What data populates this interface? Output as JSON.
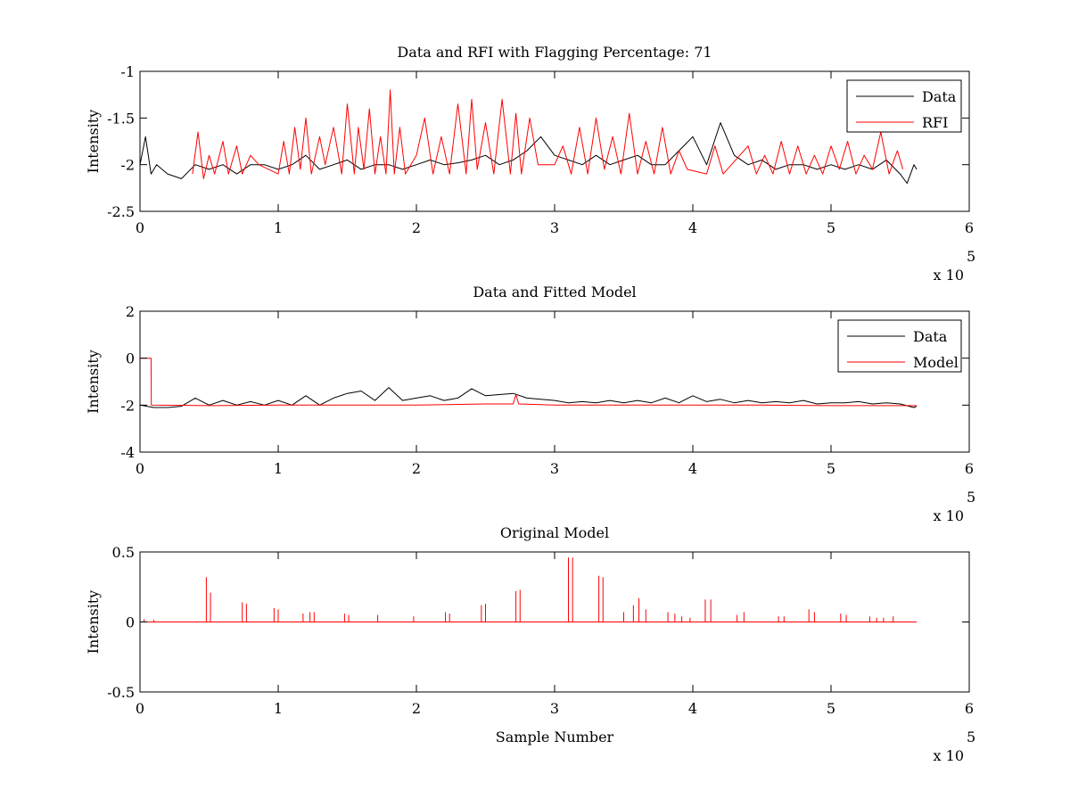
{
  "chart_data": [
    {
      "type": "line",
      "title": "Data and RFI with Flagging Percentage: 71",
      "xlabel": "",
      "ylabel": "Intensity",
      "xlim": [
        0,
        600000
      ],
      "ylim": [
        -2.5,
        -1
      ],
      "xticks": [
        0,
        1,
        2,
        3,
        4,
        5,
        6
      ],
      "yticks": [
        -2.5,
        -2,
        -1.5,
        -1
      ],
      "xtick_labels": [
        "0",
        "1",
        "2",
        "3",
        "4",
        "5",
        "6"
      ],
      "ytick_labels": [
        "-2.5",
        "-2",
        "-1.5",
        "-1"
      ],
      "x_multiplier": "x 10",
      "x_multiplier_exp": "5",
      "grid": false,
      "legend": "top-right",
      "series": [
        {
          "name": "Data",
          "color": "#000000",
          "x": [
            0,
            4000,
            8000,
            12000,
            20000,
            30000,
            40000,
            50000,
            60000,
            70000,
            80000,
            90000,
            100000,
            110000,
            120000,
            130000,
            140000,
            150000,
            160000,
            170000,
            180000,
            190000,
            200000,
            210000,
            220000,
            230000,
            240000,
            250000,
            260000,
            270000,
            280000,
            290000,
            300000,
            310000,
            320000,
            330000,
            340000,
            350000,
            360000,
            370000,
            380000,
            390000,
            400000,
            410000,
            420000,
            430000,
            440000,
            450000,
            460000,
            470000,
            480000,
            490000,
            500000,
            510000,
            520000,
            530000,
            540000,
            550000,
            555000,
            560000,
            562000
          ],
          "y": [
            -2.0,
            -1.7,
            -2.1,
            -2.0,
            -2.1,
            -2.15,
            -2.0,
            -2.05,
            -2.0,
            -2.1,
            -2.0,
            -2.0,
            -2.05,
            -2.0,
            -1.9,
            -2.05,
            -2.0,
            -1.95,
            -2.05,
            -2.0,
            -2.0,
            -2.05,
            -2.0,
            -1.95,
            -2.0,
            -1.98,
            -1.95,
            -1.9,
            -2.0,
            -1.95,
            -1.85,
            -1.7,
            -1.9,
            -1.95,
            -2.0,
            -1.9,
            -2.0,
            -1.95,
            -1.9,
            -2.0,
            -2.0,
            -1.85,
            -1.7,
            -2.0,
            -1.55,
            -1.9,
            -2.0,
            -1.95,
            -2.05,
            -2.0,
            -2.0,
            -2.05,
            -2.0,
            -2.05,
            -2.0,
            -2.05,
            -1.95,
            -2.1,
            -2.2,
            -2.0,
            -2.05
          ]
        },
        {
          "name": "RFI",
          "color": "#ff0000",
          "x": [
            38000,
            42000,
            46000,
            50000,
            54000,
            60000,
            64000,
            70000,
            74000,
            80000,
            86000,
            100000,
            104000,
            108000,
            112000,
            116000,
            120000,
            124000,
            130000,
            134000,
            140000,
            146000,
            150000,
            155000,
            158000,
            162000,
            166000,
            170000,
            174000,
            178000,
            181000,
            184000,
            188000,
            192000,
            200000,
            206000,
            212000,
            218000,
            224000,
            230000,
            236000,
            240000,
            244000,
            250000,
            256000,
            262000,
            268000,
            272000,
            276000,
            282000,
            288000,
            300000,
            306000,
            312000,
            318000,
            324000,
            330000,
            336000,
            342000,
            348000,
            354000,
            360000,
            366000,
            372000,
            378000,
            384000,
            390000,
            396000,
            410000,
            416000,
            422000,
            440000,
            446000,
            452000,
            458000,
            464000,
            470000,
            476000,
            482000,
            488000,
            494000,
            500000,
            506000,
            512000,
            518000,
            524000,
            530000,
            536000,
            542000,
            548000,
            552000
          ],
          "y": [
            -2.1,
            -1.65,
            -2.15,
            -1.9,
            -2.1,
            -1.75,
            -2.1,
            -1.8,
            -2.1,
            -1.9,
            -2.0,
            -2.1,
            -1.75,
            -2.1,
            -1.6,
            -2.05,
            -1.5,
            -2.1,
            -1.7,
            -2.0,
            -1.6,
            -2.1,
            -1.35,
            -2.1,
            -1.6,
            -2.05,
            -1.4,
            -2.1,
            -1.7,
            -2.1,
            -1.2,
            -2.1,
            -1.6,
            -2.1,
            -1.9,
            -1.5,
            -2.1,
            -1.7,
            -2.1,
            -1.35,
            -2.1,
            -1.3,
            -2.05,
            -1.55,
            -2.1,
            -1.3,
            -2.1,
            -1.45,
            -2.1,
            -1.5,
            -2.0,
            -2.0,
            -1.8,
            -2.1,
            -1.6,
            -2.1,
            -1.5,
            -2.05,
            -1.7,
            -2.1,
            -1.45,
            -2.1,
            -1.75,
            -2.1,
            -1.6,
            -2.1,
            -1.85,
            -2.05,
            -2.1,
            -1.8,
            -2.1,
            -1.8,
            -2.1,
            -1.9,
            -2.1,
            -1.75,
            -2.1,
            -1.8,
            -2.1,
            -1.9,
            -2.1,
            -1.8,
            -2.05,
            -1.75,
            -2.1,
            -1.9,
            -2.05,
            -1.65,
            -2.1,
            -1.85,
            -2.05
          ]
        }
      ]
    },
    {
      "type": "line",
      "title": "Data and Fitted Model",
      "xlabel": "",
      "ylabel": "Intensity",
      "xlim": [
        0,
        600000
      ],
      "ylim": [
        -4,
        2
      ],
      "xticks": [
        0,
        1,
        2,
        3,
        4,
        5,
        6
      ],
      "yticks": [
        -4,
        -2,
        0,
        2
      ],
      "xtick_labels": [
        "0",
        "1",
        "2",
        "3",
        "4",
        "5",
        "6"
      ],
      "ytick_labels": [
        "-4",
        "-2",
        "0",
        "2"
      ],
      "x_multiplier": "x 10",
      "x_multiplier_exp": "5",
      "grid": false,
      "legend": "top-right",
      "series": [
        {
          "name": "Data",
          "color": "#000000",
          "x": [
            0,
            10000,
            20000,
            30000,
            40000,
            50000,
            60000,
            70000,
            80000,
            90000,
            100000,
            110000,
            120000,
            130000,
            140000,
            150000,
            160000,
            170000,
            180000,
            190000,
            200000,
            210000,
            220000,
            230000,
            240000,
            250000,
            260000,
            270000,
            280000,
            290000,
            300000,
            310000,
            320000,
            330000,
            340000,
            350000,
            360000,
            370000,
            380000,
            390000,
            400000,
            410000,
            420000,
            430000,
            440000,
            450000,
            460000,
            470000,
            480000,
            490000,
            500000,
            510000,
            520000,
            530000,
            540000,
            550000,
            560000,
            562000
          ],
          "y": [
            -2.0,
            -2.1,
            -2.1,
            -2.05,
            -1.7,
            -2.0,
            -1.8,
            -2.0,
            -1.85,
            -2.0,
            -1.8,
            -2.0,
            -1.6,
            -2.0,
            -1.7,
            -1.5,
            -1.4,
            -1.8,
            -1.25,
            -1.8,
            -1.7,
            -1.6,
            -1.8,
            -1.7,
            -1.3,
            -1.6,
            -1.55,
            -1.5,
            -1.7,
            -1.75,
            -1.8,
            -1.9,
            -1.85,
            -1.9,
            -1.8,
            -1.9,
            -1.8,
            -1.9,
            -1.7,
            -1.9,
            -1.6,
            -1.85,
            -1.75,
            -1.9,
            -1.8,
            -1.9,
            -1.85,
            -1.9,
            -1.8,
            -1.95,
            -1.9,
            -1.9,
            -1.85,
            -1.95,
            -1.9,
            -1.95,
            -2.1,
            -2.05
          ]
        },
        {
          "name": "Model",
          "color": "#ff0000",
          "x": [
            0,
            8000,
            8200,
            50000,
            100000,
            150000,
            200000,
            250000,
            270000,
            272000,
            274000,
            300000,
            350000,
            400000,
            450000,
            500000,
            550000,
            562000
          ],
          "y": [
            0,
            0,
            -2.0,
            -2.02,
            -2.0,
            -2.0,
            -2.0,
            -1.95,
            -1.95,
            -1.55,
            -1.95,
            -2.0,
            -2.0,
            -2.0,
            -2.0,
            -2.02,
            -2.02,
            -2.02
          ]
        }
      ]
    },
    {
      "type": "line",
      "title": "Original Model",
      "xlabel": "Sample Number",
      "ylabel": "Intensity",
      "xlim": [
        0,
        600000
      ],
      "ylim": [
        -0.5,
        0.5
      ],
      "xticks": [
        0,
        1,
        2,
        3,
        4,
        5,
        6
      ],
      "yticks": [
        -0.5,
        0,
        0.5
      ],
      "xtick_labels": [
        "0",
        "1",
        "2",
        "3",
        "4",
        "5",
        "6"
      ],
      "ytick_labels": [
        "-0.5",
        "0",
        "0.5"
      ],
      "x_multiplier": "x 10",
      "x_multiplier_exp": "5",
      "grid": false,
      "legend": "none",
      "series": [
        {
          "color": "#ff0000",
          "baseline_x": [
            0,
            562000
          ],
          "baseline_y": 0,
          "spikes_x": [
            3000,
            10000,
            48000,
            51000,
            74000,
            77000,
            97000,
            100000,
            118000,
            123000,
            126000,
            148000,
            151000,
            172000,
            198000,
            221000,
            224000,
            247000,
            250000,
            272000,
            275000,
            310000,
            313000,
            332000,
            335000,
            350000,
            357000,
            361000,
            366000,
            382000,
            387000,
            392000,
            398000,
            409000,
            413000,
            432000,
            437000,
            462000,
            466000,
            484000,
            488000,
            507000,
            511000,
            528000,
            533000,
            538000,
            545000
          ],
          "spikes_y": [
            0.02,
            0.015,
            0.32,
            0.21,
            0.14,
            0.13,
            0.1,
            0.09,
            0.06,
            0.07,
            0.07,
            0.06,
            0.05,
            0.05,
            0.04,
            0.07,
            0.06,
            0.12,
            0.13,
            0.22,
            0.23,
            0.46,
            0.46,
            0.33,
            0.32,
            0.07,
            0.12,
            0.17,
            0.09,
            0.07,
            0.06,
            0.04,
            0.03,
            0.16,
            0.16,
            0.05,
            0.07,
            0.04,
            0.04,
            0.09,
            0.07,
            0.06,
            0.05,
            0.04,
            0.03,
            0.03,
            0.04
          ]
        }
      ]
    }
  ]
}
